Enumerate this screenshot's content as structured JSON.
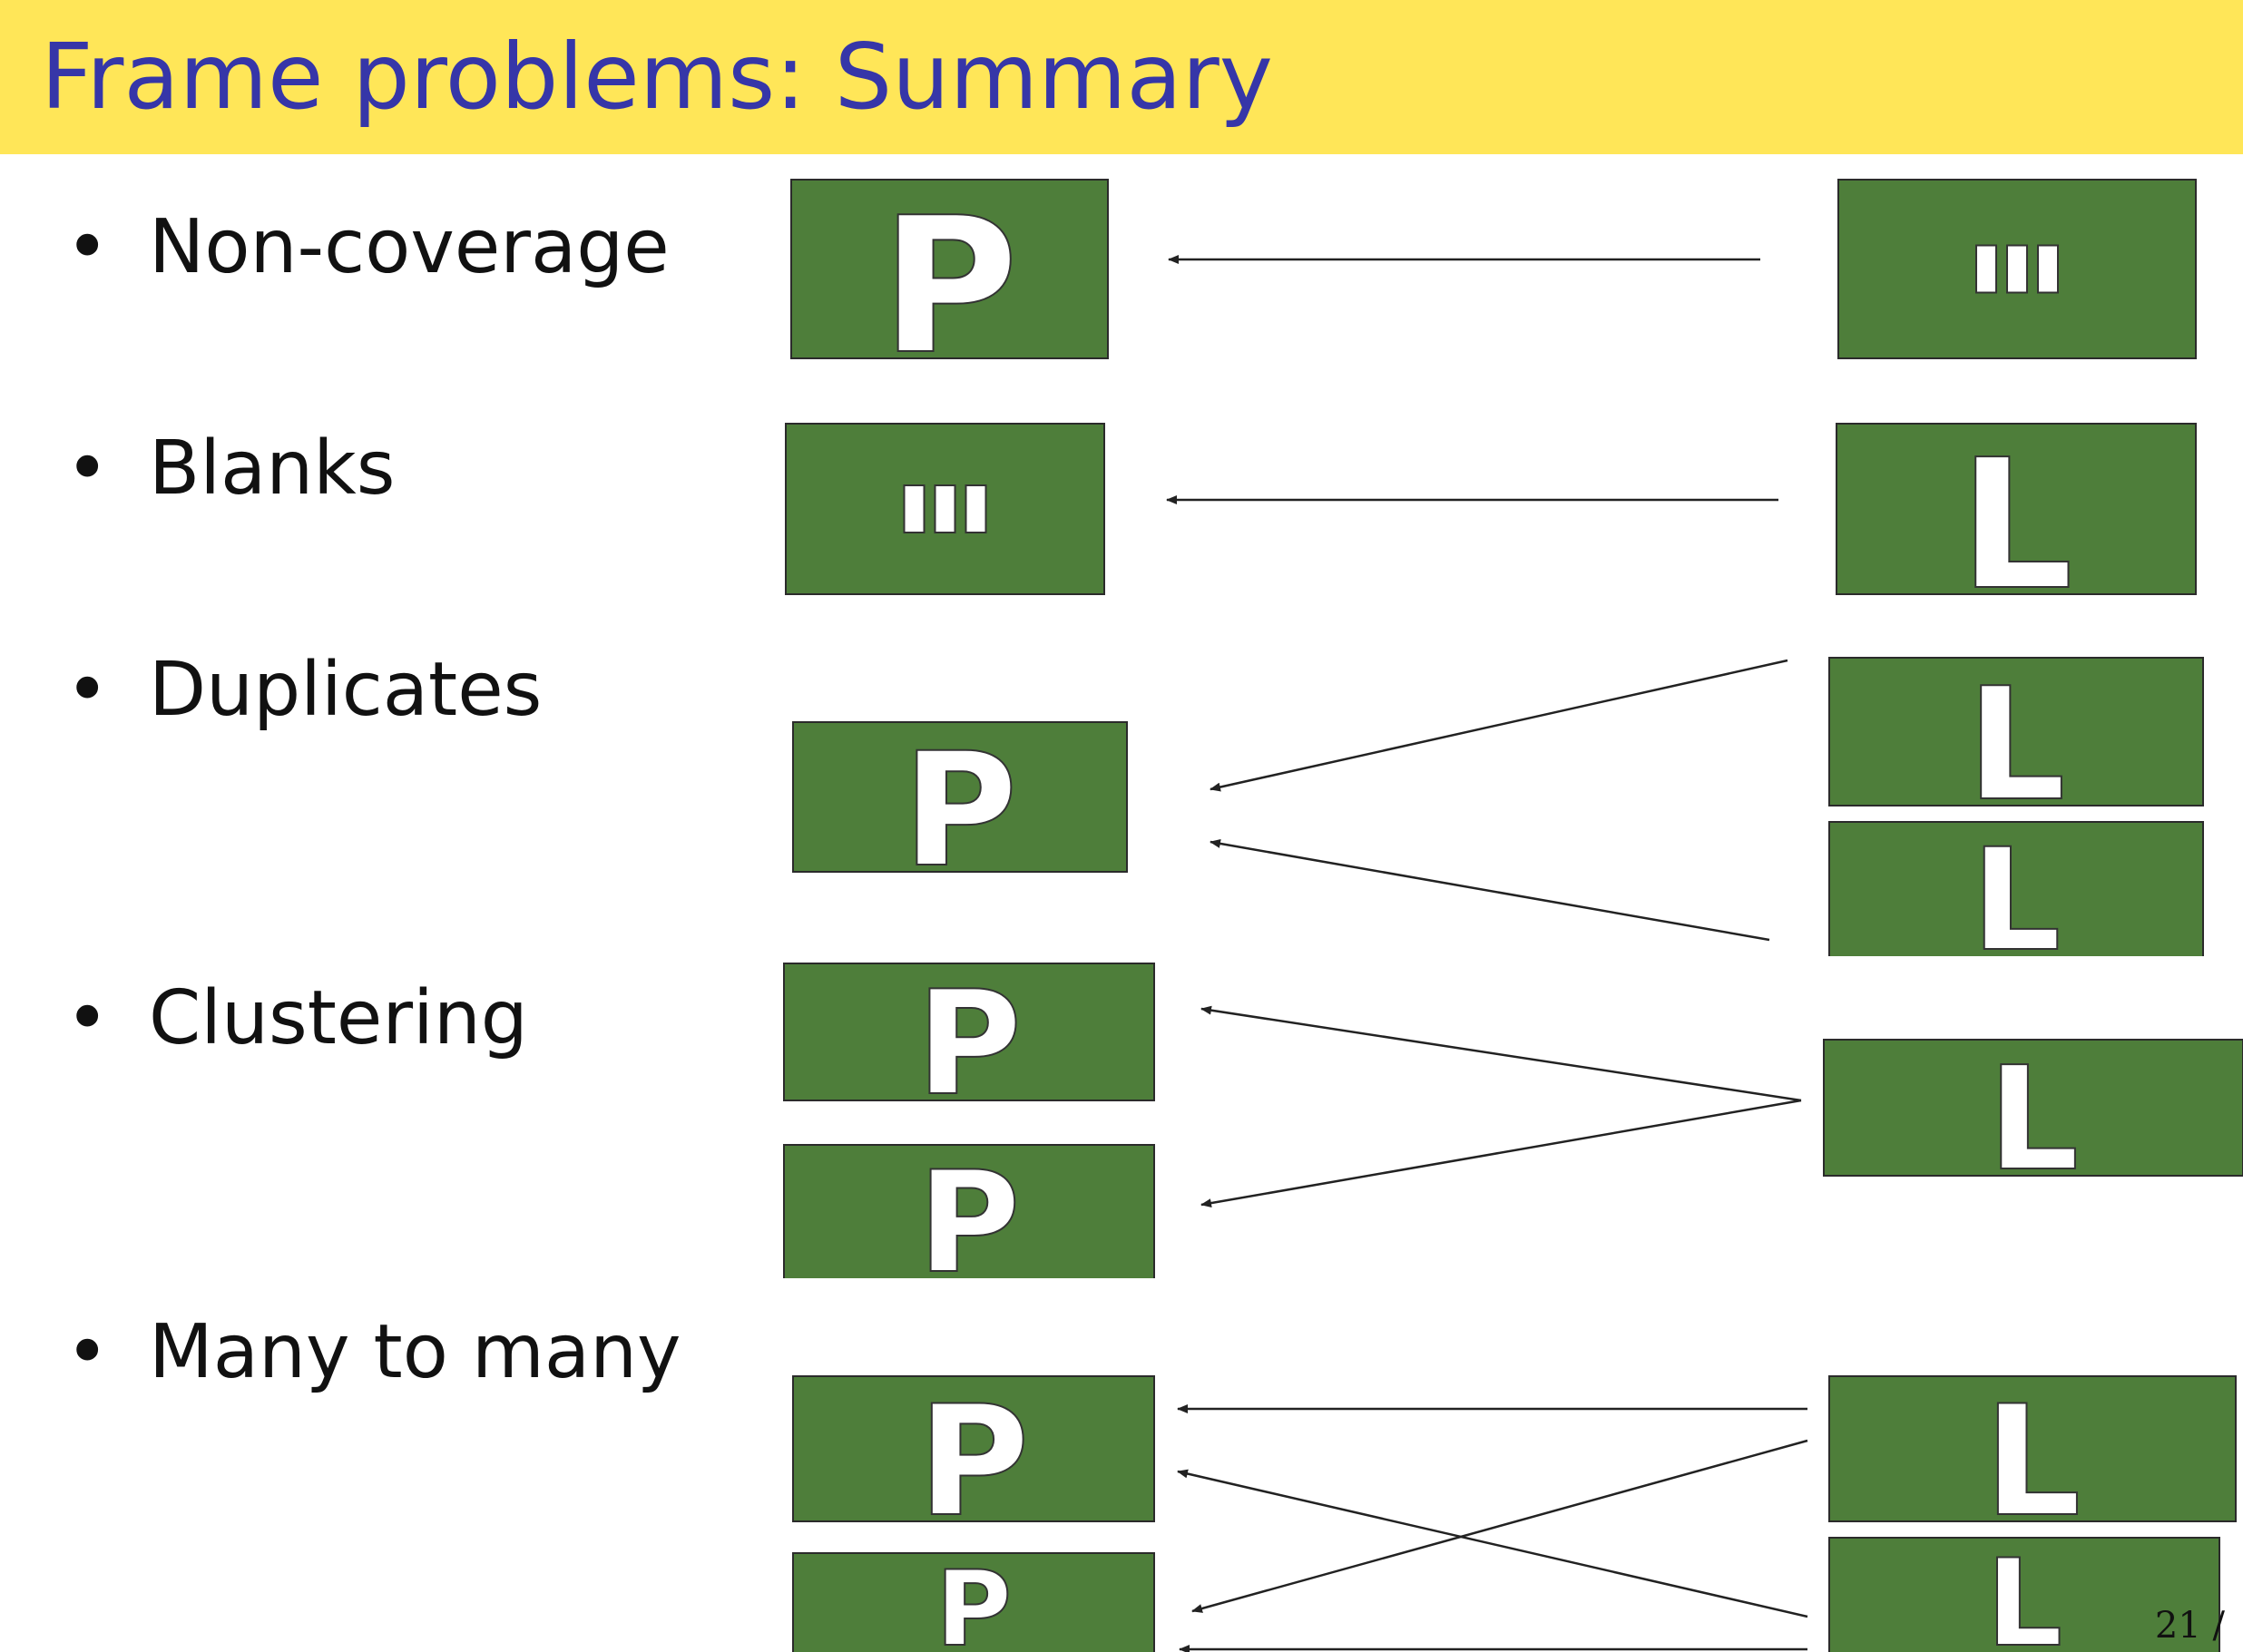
{
  "title": "Frame problems: Summary",
  "bullets": [
    {
      "bullet": "•",
      "label": "Non-coverage"
    },
    {
      "bullet": "•",
      "label": "Blanks"
    },
    {
      "bullet": "•",
      "label": "Duplicates"
    },
    {
      "bullet": "•",
      "label": "Clustering"
    },
    {
      "bullet": "•",
      "label": "Many to many"
    }
  ],
  "diagram": {
    "box_color": "#4e7e3a",
    "letters": {
      "left": "P",
      "right": "L"
    }
  },
  "page_number": "21 /"
}
